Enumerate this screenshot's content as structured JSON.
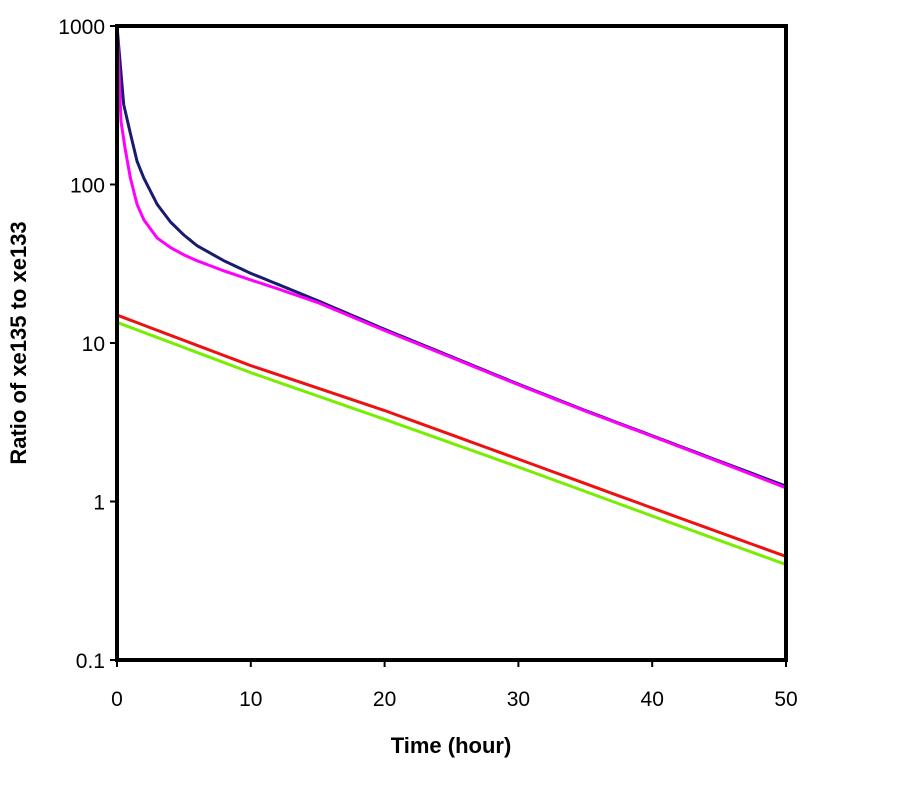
{
  "chart_data": {
    "type": "line",
    "title": "",
    "xlabel": "Time (hour)",
    "ylabel": "Ratio of xe135 to xe133",
    "xlim": [
      0,
      50
    ],
    "ylim": [
      0.1,
      1000
    ],
    "yscale": "log",
    "grid": false,
    "legend": "none",
    "x_ticks": [
      0,
      10,
      20,
      30,
      40,
      50
    ],
    "x_tick_labels": [
      "0",
      "10",
      "20",
      "30",
      "40",
      "50"
    ],
    "y_ticks": [
      0.1,
      1,
      10,
      100,
      1000
    ],
    "y_tick_labels": [
      "0.1",
      "1",
      "10",
      "100",
      "1000"
    ],
    "series": [
      {
        "color": "#1a1a6e",
        "points": [
          [
            0,
            1000
          ],
          [
            0.5,
            320
          ],
          [
            1,
            210
          ],
          [
            1.5,
            140
          ],
          [
            2,
            110
          ],
          [
            3,
            75
          ],
          [
            4,
            58
          ],
          [
            5,
            48
          ],
          [
            6,
            41
          ],
          [
            8,
            33
          ],
          [
            10,
            27.5
          ],
          [
            12,
            23.5
          ],
          [
            15,
            18.5
          ],
          [
            20,
            12.2
          ],
          [
            25,
            8.2
          ],
          [
            30,
            5.5
          ],
          [
            35,
            3.75
          ],
          [
            40,
            2.6
          ],
          [
            45,
            1.8
          ],
          [
            50,
            1.25
          ]
        ]
      },
      {
        "color": "#ff00ff",
        "points": [
          [
            0,
            1000
          ],
          [
            0.3,
            250
          ],
          [
            0.6,
            170
          ],
          [
            1,
            110
          ],
          [
            1.5,
            75
          ],
          [
            2,
            60
          ],
          [
            3,
            46
          ],
          [
            4,
            40
          ],
          [
            5,
            36
          ],
          [
            6,
            33
          ],
          [
            8,
            28.5
          ],
          [
            10,
            25
          ],
          [
            12,
            22
          ],
          [
            15,
            18
          ],
          [
            20,
            12
          ],
          [
            25,
            8.1
          ],
          [
            30,
            5.45
          ],
          [
            35,
            3.72
          ],
          [
            40,
            2.58
          ],
          [
            45,
            1.78
          ],
          [
            50,
            1.22
          ]
        ]
      },
      {
        "color": "#ee1111",
        "points": [
          [
            0,
            15
          ],
          [
            10,
            7.2
          ],
          [
            20,
            3.75
          ],
          [
            30,
            1.85
          ],
          [
            40,
            0.91
          ],
          [
            50,
            0.45
          ]
        ]
      },
      {
        "color": "#77ee00",
        "points": [
          [
            0,
            13.5
          ],
          [
            10,
            6.5
          ],
          [
            20,
            3.3
          ],
          [
            30,
            1.65
          ],
          [
            40,
            0.81
          ],
          [
            50,
            0.4
          ]
        ]
      }
    ]
  }
}
